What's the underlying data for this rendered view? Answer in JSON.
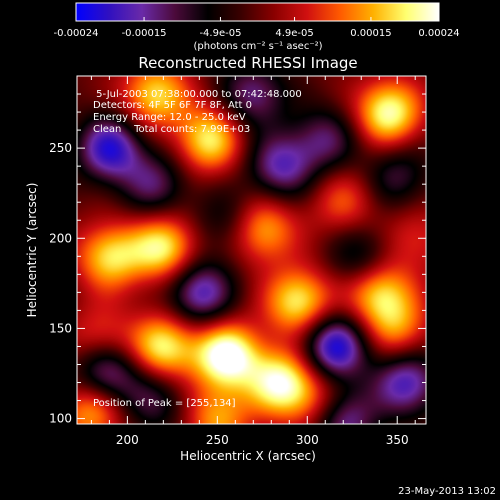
{
  "colorbar": {
    "tick_labels": [
      "-0.00024",
      "-0.00015",
      "-4.9e-05",
      "4.9e-05",
      "0.00015",
      "0.00024"
    ],
    "tick_values": [
      -0.00024,
      -0.00015,
      -4.9e-05,
      4.9e-05,
      0.00015,
      0.00024
    ],
    "range": [
      -0.00024,
      0.00024
    ],
    "unit_label": "(photons cm⁻² s⁻¹ asec⁻²)",
    "gradient_colors": [
      "#0000ff",
      "#3010c0",
      "#6a2aa8",
      "#4b0a3a",
      "#000000",
      "#3a0000",
      "#8a0000",
      "#d01010",
      "#ff5a00",
      "#ffb000",
      "#ffff70",
      "#ffffff"
    ]
  },
  "chart_data": {
    "type": "heatmap",
    "title": "Reconstructed RHESSI Image",
    "xlabel": "Heliocentric X (arcsec)",
    "ylabel": "Heliocentric Y (arcsec)",
    "xlim": [
      172,
      366
    ],
    "ylim": [
      97,
      290
    ],
    "x_ticks": [
      200,
      250,
      300,
      350
    ],
    "y_ticks": [
      100,
      150,
      200,
      250
    ],
    "annotations": [
      " 5-Jul-2003 07:38:00.000 to 07:42:48.000",
      "Detectors: 4F 5F 6F 7F 8F, Att 0",
      "Energy Range: 12.0 - 25.0 keV",
      "Clean    Total counts: 7.99E+03"
    ],
    "peak_label": "Position of Peak = [255,134]",
    "peak_position": [
      255,
      134
    ],
    "blobs": [
      {
        "x": 190,
        "y": 250,
        "v": -1.0
      },
      {
        "x": 190,
        "y": 190,
        "v": 0.9
      },
      {
        "x": 185,
        "y": 145,
        "v": 0.5
      },
      {
        "x": 188,
        "y": 125,
        "v": -0.9
      },
      {
        "x": 180,
        "y": 105,
        "v": 0.8
      },
      {
        "x": 215,
        "y": 280,
        "v": 0.9
      },
      {
        "x": 215,
        "y": 230,
        "v": -0.6
      },
      {
        "x": 220,
        "y": 195,
        "v": 1.0
      },
      {
        "x": 220,
        "y": 140,
        "v": 1.0
      },
      {
        "x": 215,
        "y": 110,
        "v": -0.5
      },
      {
        "x": 245,
        "y": 255,
        "v": 0.95
      },
      {
        "x": 240,
        "y": 170,
        "v": -0.9
      },
      {
        "x": 255,
        "y": 135,
        "v": 1.3
      },
      {
        "x": 255,
        "y": 210,
        "v": -0.4
      },
      {
        "x": 250,
        "y": 100,
        "v": 0.7
      },
      {
        "x": 270,
        "y": 280,
        "v": -0.7
      },
      {
        "x": 275,
        "y": 205,
        "v": 0.8
      },
      {
        "x": 285,
        "y": 240,
        "v": -0.8
      },
      {
        "x": 295,
        "y": 165,
        "v": 1.0
      },
      {
        "x": 285,
        "y": 120,
        "v": 1.1
      },
      {
        "x": 310,
        "y": 255,
        "v": -0.6
      },
      {
        "x": 320,
        "y": 220,
        "v": 0.5
      },
      {
        "x": 315,
        "y": 140,
        "v": -1.1
      },
      {
        "x": 320,
        "y": 100,
        "v": -0.8
      },
      {
        "x": 345,
        "y": 270,
        "v": 1.1
      },
      {
        "x": 350,
        "y": 235,
        "v": -0.5
      },
      {
        "x": 340,
        "y": 170,
        "v": 0.9
      },
      {
        "x": 350,
        "y": 150,
        "v": 0.6
      },
      {
        "x": 355,
        "y": 120,
        "v": -0.9
      },
      {
        "x": 360,
        "y": 200,
        "v": 0.4
      },
      {
        "x": 330,
        "y": 190,
        "v": -0.5
      },
      {
        "x": 305,
        "y": 110,
        "v": 0.5
      }
    ]
  },
  "footer": {
    "timestamp": "23-May-2013 13:02"
  }
}
